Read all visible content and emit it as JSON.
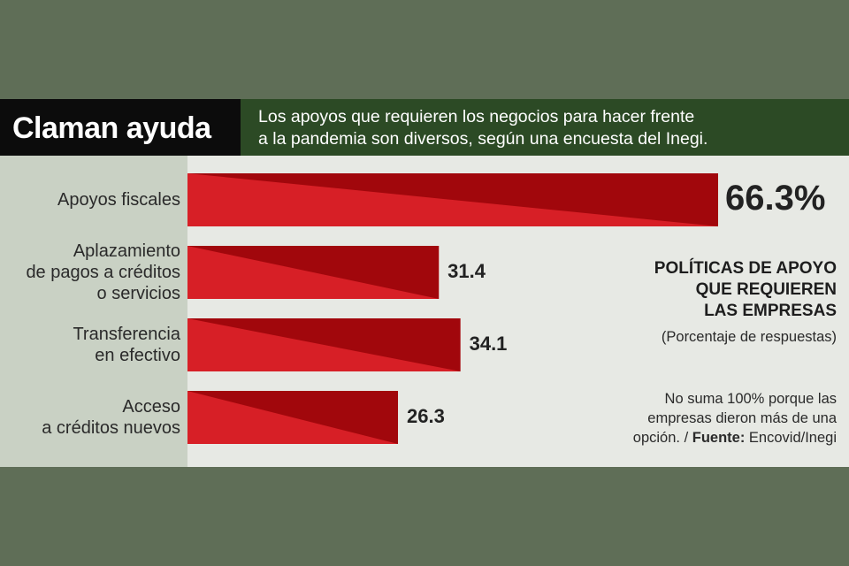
{
  "chart_data": {
    "type": "bar",
    "orientation": "horizontal",
    "title": "Claman ayuda",
    "subtitle": "Los apoyos que requieren los negocios para hacer frente\na la pandemia son diversos, según una encuesta del Inegi.",
    "chart_title": "POLÍTICAS DE APOYO\nQUE REQUIEREN\nLAS EMPRESAS",
    "chart_subtitle": "(Porcentaje de respuestas)",
    "note": "No suma 100% porque las\nempresas dieron más de una\nopción. / ",
    "source_label": "Fuente:",
    "source": " Encovid/Inegi",
    "categories": [
      "Apoyos fiscales",
      "Aplazamiento\nde pagos a créditos\no servicios",
      "Transferencia\nen efectivo",
      "Acceso\na créditos nuevos"
    ],
    "values": [
      66.3,
      31.4,
      34.1,
      26.3
    ],
    "value_labels": [
      "66.3%",
      "31.4",
      "34.1",
      "26.3"
    ],
    "color": "#d71f26",
    "shade_color": "#a1070c"
  }
}
